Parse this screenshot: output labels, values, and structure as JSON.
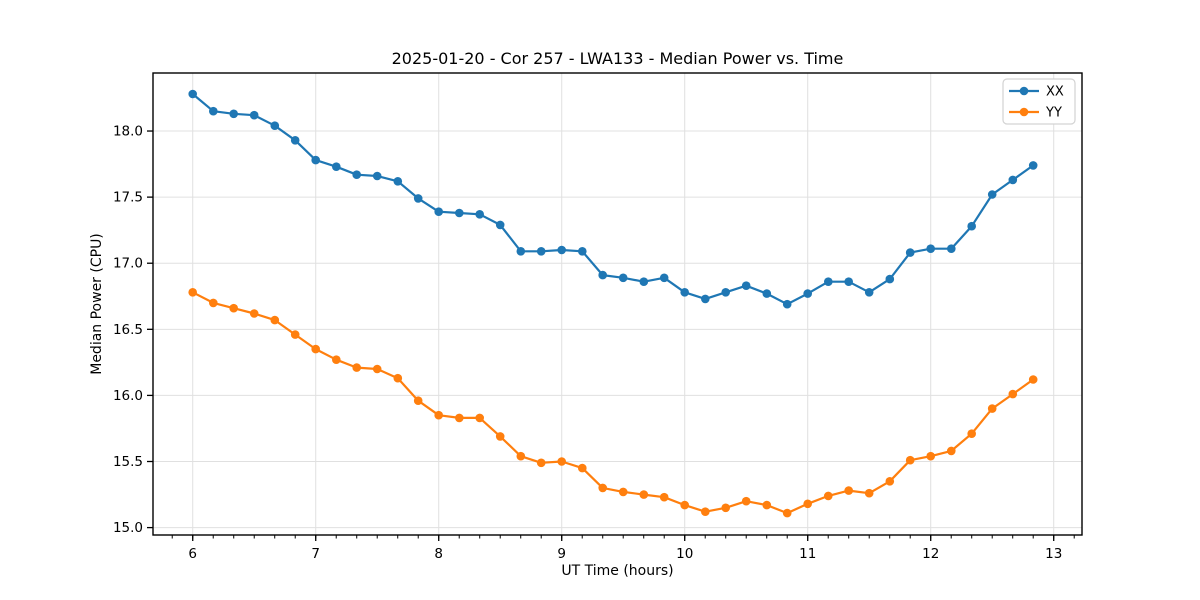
{
  "figure": {
    "background": "#ffffff"
  },
  "chart_data": {
    "type": "line",
    "title": "2025-01-20 - Cor 257 - LWA133 - Median Power vs. Time",
    "xlabel": "UT Time (hours)",
    "ylabel": "Median Power (CPU)",
    "xlim": [
      5.677,
      13.23
    ],
    "ylim": [
      14.944,
      18.439
    ],
    "xticks": [
      6,
      7,
      8,
      9,
      10,
      11,
      12,
      13
    ],
    "yticks": [
      15.0,
      15.5,
      16.0,
      16.5,
      17.0,
      17.5,
      18.0
    ],
    "ytick_decimals": 1,
    "x_minor_tick_step": 0.1666667,
    "grid": "major",
    "grid_color": "#e0e0e0",
    "spine_color": "#000000",
    "tick_color": "#000000",
    "legend": {
      "position": "upper-right",
      "border_color": "#d3d3d3",
      "background": "#ffffff"
    },
    "x": [
      6.0,
      6.167,
      6.333,
      6.5,
      6.667,
      6.833,
      7.0,
      7.167,
      7.333,
      7.5,
      7.667,
      7.833,
      8.0,
      8.167,
      8.333,
      8.5,
      8.667,
      8.833,
      9.0,
      9.167,
      9.333,
      9.5,
      9.667,
      9.833,
      10.0,
      10.167,
      10.333,
      10.5,
      10.667,
      10.833,
      11.0,
      11.167,
      11.333,
      11.5,
      11.667,
      11.833,
      12.0,
      12.167,
      12.333,
      12.5,
      12.667,
      12.833
    ],
    "series": [
      {
        "name": "XX",
        "color": "#1f77b4",
        "marker": "circle",
        "values": [
          18.28,
          18.15,
          18.13,
          18.12,
          18.04,
          17.93,
          17.78,
          17.73,
          17.67,
          17.66,
          17.62,
          17.49,
          17.39,
          17.38,
          17.37,
          17.29,
          17.09,
          17.09,
          17.1,
          17.09,
          16.91,
          16.89,
          16.86,
          16.89,
          16.78,
          16.73,
          16.78,
          16.83,
          16.77,
          16.69,
          16.77,
          16.86,
          16.86,
          16.78,
          16.88,
          17.08,
          17.11,
          17.11,
          17.28,
          17.52,
          17.63,
          17.74
        ]
      },
      {
        "name": "YY",
        "color": "#ff7f0e",
        "marker": "circle",
        "values": [
          16.78,
          16.7,
          16.66,
          16.62,
          16.57,
          16.46,
          16.35,
          16.27,
          16.21,
          16.2,
          16.13,
          15.96,
          15.85,
          15.83,
          15.83,
          15.69,
          15.54,
          15.49,
          15.5,
          15.45,
          15.3,
          15.27,
          15.25,
          15.23,
          15.17,
          15.12,
          15.15,
          15.2,
          15.17,
          15.11,
          15.18,
          15.24,
          15.28,
          15.26,
          15.35,
          15.51,
          15.54,
          15.58,
          15.71,
          15.9,
          16.01,
          16.12
        ]
      }
    ]
  }
}
